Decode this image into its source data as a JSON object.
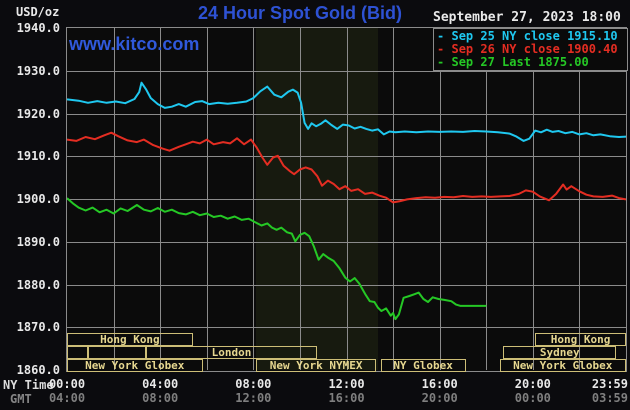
{
  "colors": {
    "background": "#0b0b0e",
    "plot_bg": "#0b0b0b",
    "nymex_band": "#171a0f",
    "grid": "#8b8b8b",
    "text": "#e9e9e9",
    "muted_text": "#7f7f7f",
    "session_border": "#cdbe77",
    "session_text": "#e6d790",
    "title_blue": "#2e52d4",
    "kitco_blue": "#3059dc",
    "series_sep25": "#1fc8f0",
    "series_sep26": "#e42d22",
    "series_sep27": "#25c825"
  },
  "header": {
    "unit": "USD/oz",
    "title": "24 Hour Spot Gold (Bid)",
    "timestamp": "September 27, 2023 18:00",
    "watermark": "www.kitco.com"
  },
  "legend": [
    {
      "marker": "-",
      "label": "Sep 25 NY close 1915.10",
      "color_key": "series_sep25"
    },
    {
      "marker": "-",
      "label": "Sep 26 NY close 1900.40",
      "color_key": "series_sep26"
    },
    {
      "marker": "-",
      "label": "Sep 27 Last 1875.00",
      "color_key": "series_sep27"
    }
  ],
  "y_axis": {
    "ticks": [
      "1940.0",
      "1930.0",
      "1920.0",
      "1910.0",
      "1900.0",
      "1890.0",
      "1880.0",
      "1870.0",
      "1860.0"
    ]
  },
  "x_axis": {
    "ny_label": "NY Time",
    "gmt_label": "GMT",
    "ticks": [
      {
        "h": 0,
        "ny": "00:00",
        "gmt": "04:00"
      },
      {
        "h": 4,
        "ny": "04:00",
        "gmt": "08:00"
      },
      {
        "h": 8,
        "ny": "08:00",
        "gmt": "12:00"
      },
      {
        "h": 12,
        "ny": "12:00",
        "gmt": "16:00"
      },
      {
        "h": 16,
        "ny": "16:00",
        "gmt": "20:00"
      },
      {
        "h": 20,
        "ny": "20:00",
        "gmt": "00:00"
      },
      {
        "h": 23.983,
        "ny": "23:59",
        "gmt": "03:59",
        "align_right": true
      }
    ]
  },
  "sessions": [
    {
      "boxes": [
        {
          "start_h": 0,
          "end_h": 5.4,
          "label": "Hong Kong"
        },
        {
          "start_h": 20.1,
          "end_h": 24,
          "label": "Hong Kong"
        }
      ]
    },
    {
      "boxes": [
        {
          "start_h": 0,
          "end_h": 0.9,
          "label": ""
        },
        {
          "start_h": 0.9,
          "end_h": 3.38,
          "label": ""
        },
        {
          "start_h": 3.38,
          "end_h": 10.75,
          "label": "London"
        },
        {
          "start_h": 18.74,
          "end_h": 23.57,
          "label": "Sydney"
        }
      ]
    },
    {
      "boxes": [
        {
          "start_h": 0,
          "end_h": 5.82,
          "label": "New York Globex"
        },
        {
          "start_h": 8.13,
          "end_h": 13.26,
          "label": "New York NYMEX"
        },
        {
          "start_h": 13.47,
          "end_h": 17.11,
          "label": "NY Globex"
        },
        {
          "start_h": 18.57,
          "end_h": 24,
          "label": "New York Globex"
        }
      ]
    }
  ],
  "chart_data": {
    "type": "line",
    "title": "24 Hour Spot Gold (Bid)",
    "x_label": "NY Time (hours)",
    "y_label": "USD/oz",
    "x_range_hours": [
      0,
      24
    ],
    "y_range": [
      1860,
      1940
    ],
    "grid": {
      "x_step_hours": 2,
      "y_step": 10,
      "visible": true
    },
    "legend_position": "top-right",
    "shaded_region_hours": {
      "start": 8.13,
      "end": 13.35
    },
    "series": [
      {
        "name": "Sep 25",
        "legend": "Sep 25 NY close 1915.10",
        "close_value": 1915.1,
        "color_key": "series_sep25",
        "points": [
          [
            0,
            1923.3
          ],
          [
            0.5,
            1923.0
          ],
          [
            0.9,
            1922.5
          ],
          [
            1.3,
            1922.9
          ],
          [
            1.7,
            1922.5
          ],
          [
            2.1,
            1922.8
          ],
          [
            2.5,
            1922.4
          ],
          [
            2.9,
            1923.4
          ],
          [
            3.1,
            1925.0
          ],
          [
            3.2,
            1927.2
          ],
          [
            3.4,
            1925.6
          ],
          [
            3.6,
            1923.6
          ],
          [
            3.9,
            1922.2
          ],
          [
            4.2,
            1921.3
          ],
          [
            4.5,
            1921.6
          ],
          [
            4.8,
            1922.2
          ],
          [
            5.1,
            1921.6
          ],
          [
            5.5,
            1922.7
          ],
          [
            5.8,
            1922.9
          ],
          [
            6.1,
            1922.2
          ],
          [
            6.5,
            1922.5
          ],
          [
            6.9,
            1922.3
          ],
          [
            7.3,
            1922.5
          ],
          [
            7.7,
            1922.8
          ],
          [
            8.0,
            1923.6
          ],
          [
            8.3,
            1925.2
          ],
          [
            8.6,
            1926.3
          ],
          [
            8.9,
            1924.4
          ],
          [
            9.2,
            1923.8
          ],
          [
            9.5,
            1925.1
          ],
          [
            9.7,
            1925.6
          ],
          [
            9.9,
            1924.9
          ],
          [
            10.05,
            1922.5
          ],
          [
            10.2,
            1917.8
          ],
          [
            10.35,
            1916.4
          ],
          [
            10.5,
            1917.7
          ],
          [
            10.7,
            1917.0
          ],
          [
            10.9,
            1917.6
          ],
          [
            11.1,
            1918.4
          ],
          [
            11.35,
            1917.3
          ],
          [
            11.6,
            1916.4
          ],
          [
            11.85,
            1917.4
          ],
          [
            12.1,
            1917.2
          ],
          [
            12.35,
            1916.5
          ],
          [
            12.6,
            1916.9
          ],
          [
            12.85,
            1916.4
          ],
          [
            13.1,
            1916.0
          ],
          [
            13.35,
            1916.3
          ],
          [
            13.6,
            1915.1
          ],
          [
            13.85,
            1915.8
          ],
          [
            14.1,
            1915.6
          ],
          [
            14.5,
            1915.8
          ],
          [
            15,
            1915.6
          ],
          [
            15.5,
            1915.8
          ],
          [
            16,
            1915.7
          ],
          [
            16.5,
            1915.8
          ],
          [
            17,
            1915.7
          ],
          [
            17.5,
            1915.9
          ],
          [
            18,
            1915.8
          ],
          [
            18.5,
            1915.6
          ],
          [
            19,
            1915.3
          ],
          [
            19.3,
            1914.6
          ],
          [
            19.6,
            1913.6
          ],
          [
            19.85,
            1914.1
          ],
          [
            20.1,
            1916.0
          ],
          [
            20.35,
            1915.6
          ],
          [
            20.6,
            1916.2
          ],
          [
            20.85,
            1915.7
          ],
          [
            21.1,
            1915.9
          ],
          [
            21.4,
            1915.4
          ],
          [
            21.7,
            1915.7
          ],
          [
            22,
            1915.1
          ],
          [
            22.3,
            1915.4
          ],
          [
            22.6,
            1914.9
          ],
          [
            22.9,
            1915.1
          ],
          [
            23.3,
            1914.7
          ],
          [
            23.7,
            1914.5
          ],
          [
            24,
            1914.6
          ]
        ]
      },
      {
        "name": "Sep 26",
        "legend": "Sep 26 NY close 1900.40",
        "close_value": 1900.4,
        "color_key": "series_sep26",
        "points": [
          [
            0,
            1913.9
          ],
          [
            0.4,
            1913.6
          ],
          [
            0.8,
            1914.5
          ],
          [
            1.2,
            1914.0
          ],
          [
            1.6,
            1914.9
          ],
          [
            1.9,
            1915.5
          ],
          [
            2.2,
            1914.7
          ],
          [
            2.6,
            1913.7
          ],
          [
            3.0,
            1913.3
          ],
          [
            3.3,
            1913.9
          ],
          [
            3.7,
            1912.6
          ],
          [
            4.1,
            1911.8
          ],
          [
            4.4,
            1911.3
          ],
          [
            4.8,
            1912.2
          ],
          [
            5.1,
            1912.8
          ],
          [
            5.4,
            1913.4
          ],
          [
            5.7,
            1913.0
          ],
          [
            6.0,
            1913.9
          ],
          [
            6.3,
            1912.8
          ],
          [
            6.7,
            1913.3
          ],
          [
            7.0,
            1913.0
          ],
          [
            7.3,
            1914.2
          ],
          [
            7.6,
            1912.8
          ],
          [
            7.9,
            1913.9
          ],
          [
            8.15,
            1912.0
          ],
          [
            8.4,
            1909.6
          ],
          [
            8.6,
            1908.0
          ],
          [
            8.85,
            1909.7
          ],
          [
            9.05,
            1910.1
          ],
          [
            9.3,
            1907.8
          ],
          [
            9.55,
            1906.6
          ],
          [
            9.75,
            1905.8
          ],
          [
            10.0,
            1906.9
          ],
          [
            10.25,
            1907.4
          ],
          [
            10.5,
            1906.9
          ],
          [
            10.75,
            1905.3
          ],
          [
            10.95,
            1903.1
          ],
          [
            11.2,
            1904.3
          ],
          [
            11.45,
            1903.5
          ],
          [
            11.7,
            1902.3
          ],
          [
            11.95,
            1903.0
          ],
          [
            12.2,
            1901.9
          ],
          [
            12.5,
            1902.3
          ],
          [
            12.8,
            1901.2
          ],
          [
            13.1,
            1901.5
          ],
          [
            13.4,
            1900.8
          ],
          [
            13.7,
            1900.3
          ],
          [
            14.0,
            1899.2
          ],
          [
            14.3,
            1899.5
          ],
          [
            14.6,
            1899.9
          ],
          [
            15.0,
            1900.2
          ],
          [
            15.4,
            1900.4
          ],
          [
            15.8,
            1900.3
          ],
          [
            16.2,
            1900.5
          ],
          [
            16.6,
            1900.4
          ],
          [
            17.0,
            1900.7
          ],
          [
            17.4,
            1900.5
          ],
          [
            17.8,
            1900.6
          ],
          [
            18.2,
            1900.5
          ],
          [
            18.6,
            1900.6
          ],
          [
            19.0,
            1900.7
          ],
          [
            19.4,
            1901.2
          ],
          [
            19.7,
            1902.0
          ],
          [
            20.0,
            1901.7
          ],
          [
            20.3,
            1900.6
          ],
          [
            20.7,
            1899.7
          ],
          [
            21.0,
            1901.2
          ],
          [
            21.3,
            1903.4
          ],
          [
            21.45,
            1902.2
          ],
          [
            21.65,
            1903.0
          ],
          [
            22.0,
            1901.8
          ],
          [
            22.3,
            1901.0
          ],
          [
            22.6,
            1900.6
          ],
          [
            23.0,
            1900.5
          ],
          [
            23.4,
            1900.8
          ],
          [
            23.7,
            1900.2
          ],
          [
            24,
            1899.9
          ]
        ]
      },
      {
        "name": "Sep 27",
        "legend": "Sep 27 Last 1875.00",
        "last_value": 1875.0,
        "color_key": "series_sep27",
        "points": [
          [
            0,
            1900.2
          ],
          [
            0.25,
            1899.0
          ],
          [
            0.5,
            1898.0
          ],
          [
            0.8,
            1897.3
          ],
          [
            1.1,
            1898.0
          ],
          [
            1.4,
            1896.9
          ],
          [
            1.7,
            1897.5
          ],
          [
            2.0,
            1896.6
          ],
          [
            2.3,
            1897.8
          ],
          [
            2.6,
            1897.2
          ],
          [
            3.0,
            1898.6
          ],
          [
            3.3,
            1897.5
          ],
          [
            3.6,
            1897.1
          ],
          [
            3.9,
            1897.9
          ],
          [
            4.2,
            1897.0
          ],
          [
            4.5,
            1897.5
          ],
          [
            4.8,
            1896.7
          ],
          [
            5.1,
            1896.4
          ],
          [
            5.4,
            1897.0
          ],
          [
            5.7,
            1896.2
          ],
          [
            6.0,
            1896.6
          ],
          [
            6.3,
            1895.8
          ],
          [
            6.6,
            1896.1
          ],
          [
            6.9,
            1895.4
          ],
          [
            7.2,
            1895.9
          ],
          [
            7.5,
            1895.1
          ],
          [
            7.8,
            1895.4
          ],
          [
            8.1,
            1894.5
          ],
          [
            8.35,
            1893.8
          ],
          [
            8.6,
            1894.3
          ],
          [
            8.8,
            1893.3
          ],
          [
            9.0,
            1892.8
          ],
          [
            9.2,
            1893.3
          ],
          [
            9.45,
            1892.2
          ],
          [
            9.65,
            1891.9
          ],
          [
            9.8,
            1890.1
          ],
          [
            10.0,
            1891.6
          ],
          [
            10.2,
            1892.1
          ],
          [
            10.4,
            1891.3
          ],
          [
            10.6,
            1888.9
          ],
          [
            10.8,
            1885.8
          ],
          [
            11.0,
            1887.1
          ],
          [
            11.2,
            1886.3
          ],
          [
            11.45,
            1885.5
          ],
          [
            11.7,
            1883.8
          ],
          [
            11.95,
            1881.6
          ],
          [
            12.15,
            1880.7
          ],
          [
            12.35,
            1881.5
          ],
          [
            12.55,
            1880.2
          ],
          [
            12.8,
            1877.8
          ],
          [
            13.0,
            1876.1
          ],
          [
            13.2,
            1875.9
          ],
          [
            13.35,
            1874.6
          ],
          [
            13.5,
            1873.8
          ],
          [
            13.7,
            1874.4
          ],
          [
            13.9,
            1872.7
          ],
          [
            14.0,
            1873.3
          ],
          [
            14.1,
            1871.9
          ],
          [
            14.25,
            1873.0
          ],
          [
            14.45,
            1876.9
          ],
          [
            14.7,
            1877.3
          ],
          [
            14.95,
            1877.8
          ],
          [
            15.1,
            1878.1
          ],
          [
            15.3,
            1876.6
          ],
          [
            15.5,
            1875.9
          ],
          [
            15.7,
            1877.0
          ],
          [
            15.95,
            1876.6
          ],
          [
            16.2,
            1876.4
          ],
          [
            16.5,
            1876.1
          ],
          [
            16.7,
            1875.3
          ],
          [
            16.9,
            1875.0
          ],
          [
            18.0,
            1875.0
          ]
        ]
      }
    ]
  }
}
